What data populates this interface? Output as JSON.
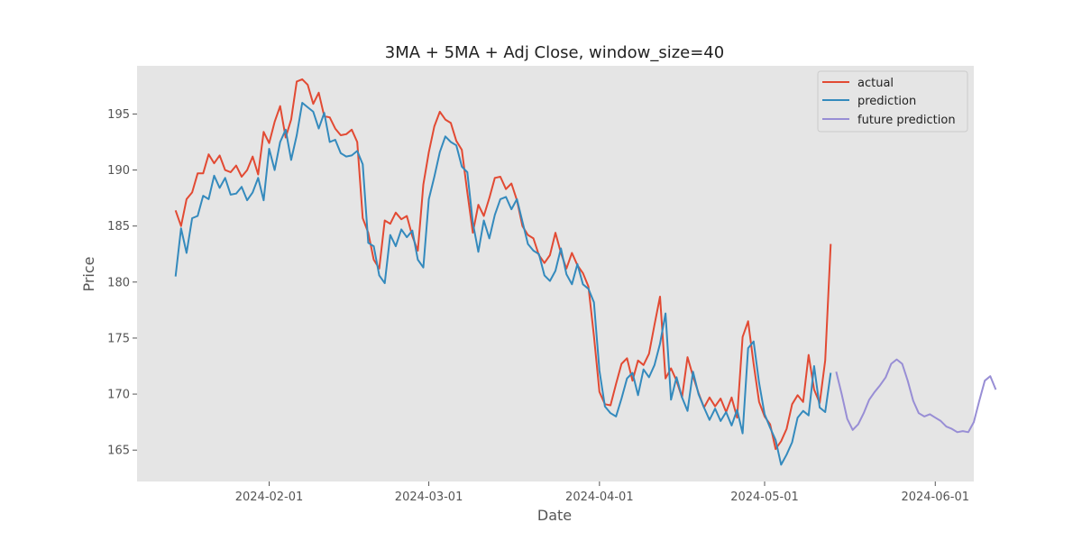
{
  "chart_data": {
    "type": "line",
    "title": "3MA + 5MA + Adj Close, window_size=40",
    "xlabel": "Date",
    "ylabel": "Price",
    "x_range": [
      "2024-01-08",
      "2024-06-08"
    ],
    "ylim": [
      162.2,
      199.3
    ],
    "y_ticks": [
      165,
      170,
      175,
      180,
      185,
      190,
      195
    ],
    "x_ticks": [
      {
        "date": "2024-02-01",
        "label": "2024-02-01"
      },
      {
        "date": "2024-03-01",
        "label": "2024-03-01"
      },
      {
        "date": "2024-04-01",
        "label": "2024-04-01"
      },
      {
        "date": "2024-05-01",
        "label": "2024-05-01"
      },
      {
        "date": "2024-06-01",
        "label": "2024-06-01"
      }
    ],
    "grid": false,
    "legend_position": "top-right",
    "series": [
      {
        "name": "actual",
        "color": "#E24A33",
        "points": [
          [
            "2024-01-15",
            186.4
          ],
          [
            "2024-01-16",
            185.0
          ],
          [
            "2024-01-17",
            187.4
          ],
          [
            "2024-01-18",
            188.0
          ],
          [
            "2024-01-19",
            189.7
          ],
          [
            "2024-01-20",
            189.7
          ],
          [
            "2024-01-21",
            191.4
          ],
          [
            "2024-01-22",
            190.6
          ],
          [
            "2024-01-23",
            191.3
          ],
          [
            "2024-01-24",
            190.0
          ],
          [
            "2024-01-25",
            189.8
          ],
          [
            "2024-01-26",
            190.4
          ],
          [
            "2024-01-27",
            189.4
          ],
          [
            "2024-01-28",
            190.0
          ],
          [
            "2024-01-29",
            191.2
          ],
          [
            "2024-01-30",
            189.6
          ],
          [
            "2024-01-31",
            193.4
          ],
          [
            "2024-02-01",
            192.4
          ],
          [
            "2024-02-02",
            194.3
          ],
          [
            "2024-02-03",
            195.7
          ],
          [
            "2024-02-04",
            192.9
          ],
          [
            "2024-02-05",
            194.5
          ],
          [
            "2024-02-06",
            197.9
          ],
          [
            "2024-02-07",
            198.1
          ],
          [
            "2024-02-08",
            197.6
          ],
          [
            "2024-02-09",
            195.9
          ],
          [
            "2024-02-10",
            196.9
          ],
          [
            "2024-02-11",
            194.8
          ],
          [
            "2024-02-12",
            194.7
          ],
          [
            "2024-02-13",
            193.7
          ],
          [
            "2024-02-14",
            193.1
          ],
          [
            "2024-02-15",
            193.2
          ],
          [
            "2024-02-16",
            193.6
          ],
          [
            "2024-02-17",
            192.5
          ],
          [
            "2024-02-18",
            185.7
          ],
          [
            "2024-02-19",
            184.4
          ],
          [
            "2024-02-20",
            182.0
          ],
          [
            "2024-02-21",
            181.2
          ],
          [
            "2024-02-22",
            185.5
          ],
          [
            "2024-02-23",
            185.2
          ],
          [
            "2024-02-24",
            186.2
          ],
          [
            "2024-02-25",
            185.6
          ],
          [
            "2024-02-26",
            185.9
          ],
          [
            "2024-02-27",
            184.1
          ],
          [
            "2024-02-28",
            182.8
          ],
          [
            "2024-02-29",
            188.7
          ],
          [
            "2024-03-01",
            191.6
          ],
          [
            "2024-03-02",
            193.9
          ],
          [
            "2024-03-03",
            195.2
          ],
          [
            "2024-03-04",
            194.5
          ],
          [
            "2024-03-05",
            194.2
          ],
          [
            "2024-03-06",
            192.6
          ],
          [
            "2024-03-07",
            191.8
          ],
          [
            "2024-03-08",
            188.0
          ],
          [
            "2024-03-09",
            184.4
          ],
          [
            "2024-03-10",
            186.9
          ],
          [
            "2024-03-11",
            185.9
          ],
          [
            "2024-03-12",
            187.5
          ],
          [
            "2024-03-13",
            189.3
          ],
          [
            "2024-03-14",
            189.4
          ],
          [
            "2024-03-15",
            188.3
          ],
          [
            "2024-03-16",
            188.8
          ],
          [
            "2024-03-17",
            187.3
          ],
          [
            "2024-03-18",
            185.0
          ],
          [
            "2024-03-19",
            184.2
          ],
          [
            "2024-03-20",
            183.9
          ],
          [
            "2024-03-21",
            182.4
          ],
          [
            "2024-03-22",
            181.7
          ],
          [
            "2024-03-23",
            182.4
          ],
          [
            "2024-03-24",
            184.4
          ],
          [
            "2024-03-25",
            182.6
          ],
          [
            "2024-03-26",
            181.2
          ],
          [
            "2024-03-27",
            182.6
          ],
          [
            "2024-03-28",
            181.5
          ],
          [
            "2024-03-29",
            180.8
          ],
          [
            "2024-03-30",
            179.6
          ],
          [
            "2024-03-31",
            175.2
          ],
          [
            "2024-04-01",
            170.2
          ],
          [
            "2024-04-02",
            169.1
          ],
          [
            "2024-04-03",
            169.0
          ],
          [
            "2024-04-04",
            170.9
          ],
          [
            "2024-04-05",
            172.7
          ],
          [
            "2024-04-06",
            173.2
          ],
          [
            "2024-04-07",
            171.2
          ],
          [
            "2024-04-08",
            173.0
          ],
          [
            "2024-04-09",
            172.6
          ],
          [
            "2024-04-10",
            173.6
          ],
          [
            "2024-04-11",
            176.2
          ],
          [
            "2024-04-12",
            178.7
          ],
          [
            "2024-04-13",
            171.4
          ],
          [
            "2024-04-14",
            172.3
          ],
          [
            "2024-04-15",
            171.2
          ],
          [
            "2024-04-16",
            169.7
          ],
          [
            "2024-04-17",
            173.3
          ],
          [
            "2024-04-18",
            171.6
          ],
          [
            "2024-04-19",
            170.1
          ],
          [
            "2024-04-20",
            168.8
          ],
          [
            "2024-04-21",
            169.7
          ],
          [
            "2024-04-22",
            168.9
          ],
          [
            "2024-04-23",
            169.6
          ],
          [
            "2024-04-24",
            168.4
          ],
          [
            "2024-04-25",
            169.7
          ],
          [
            "2024-04-26",
            167.9
          ],
          [
            "2024-04-27",
            175.1
          ],
          [
            "2024-04-28",
            176.5
          ],
          [
            "2024-04-29",
            172.7
          ],
          [
            "2024-04-30",
            169.3
          ],
          [
            "2024-05-01",
            168.0
          ],
          [
            "2024-05-02",
            167.3
          ],
          [
            "2024-05-03",
            165.1
          ],
          [
            "2024-05-04",
            165.8
          ],
          [
            "2024-05-05",
            166.9
          ],
          [
            "2024-05-06",
            169.1
          ],
          [
            "2024-05-07",
            169.9
          ],
          [
            "2024-05-08",
            169.3
          ],
          [
            "2024-05-09",
            173.5
          ],
          [
            "2024-05-10",
            170.4
          ],
          [
            "2024-05-11",
            169.2
          ],
          [
            "2024-05-12",
            173.0
          ],
          [
            "2024-05-13",
            183.4
          ]
        ]
      },
      {
        "name": "prediction",
        "color": "#348ABD",
        "points": [
          [
            "2024-01-15",
            180.5
          ],
          [
            "2024-01-16",
            184.8
          ],
          [
            "2024-01-17",
            182.6
          ],
          [
            "2024-01-18",
            185.7
          ],
          [
            "2024-01-19",
            185.9
          ],
          [
            "2024-01-20",
            187.7
          ],
          [
            "2024-01-21",
            187.4
          ],
          [
            "2024-01-22",
            189.5
          ],
          [
            "2024-01-23",
            188.4
          ],
          [
            "2024-01-24",
            189.3
          ],
          [
            "2024-01-25",
            187.8
          ],
          [
            "2024-01-26",
            187.9
          ],
          [
            "2024-01-27",
            188.5
          ],
          [
            "2024-01-28",
            187.3
          ],
          [
            "2024-01-29",
            188.0
          ],
          [
            "2024-01-30",
            189.3
          ],
          [
            "2024-01-31",
            187.3
          ],
          [
            "2024-02-01",
            191.9
          ],
          [
            "2024-02-02",
            190.0
          ],
          [
            "2024-02-03",
            192.5
          ],
          [
            "2024-02-04",
            193.6
          ],
          [
            "2024-02-05",
            190.9
          ],
          [
            "2024-02-06",
            193.1
          ],
          [
            "2024-02-07",
            196.0
          ],
          [
            "2024-02-08",
            195.6
          ],
          [
            "2024-02-09",
            195.2
          ],
          [
            "2024-02-10",
            193.7
          ],
          [
            "2024-02-11",
            195.1
          ],
          [
            "2024-02-12",
            192.5
          ],
          [
            "2024-02-13",
            192.7
          ],
          [
            "2024-02-14",
            191.5
          ],
          [
            "2024-02-15",
            191.2
          ],
          [
            "2024-02-16",
            191.3
          ],
          [
            "2024-02-17",
            191.7
          ],
          [
            "2024-02-18",
            190.5
          ],
          [
            "2024-02-19",
            183.5
          ],
          [
            "2024-02-20",
            183.2
          ],
          [
            "2024-02-21",
            180.6
          ],
          [
            "2024-02-22",
            179.9
          ],
          [
            "2024-02-23",
            184.2
          ],
          [
            "2024-02-24",
            183.2
          ],
          [
            "2024-02-25",
            184.7
          ],
          [
            "2024-02-26",
            184.0
          ],
          [
            "2024-02-27",
            184.6
          ],
          [
            "2024-02-28",
            182.0
          ],
          [
            "2024-02-29",
            181.3
          ],
          [
            "2024-03-01",
            187.4
          ],
          [
            "2024-03-02",
            189.4
          ],
          [
            "2024-03-03",
            191.6
          ],
          [
            "2024-03-04",
            193.0
          ],
          [
            "2024-03-05",
            192.5
          ],
          [
            "2024-03-06",
            192.2
          ],
          [
            "2024-03-07",
            190.3
          ],
          [
            "2024-03-08",
            189.8
          ],
          [
            "2024-03-09",
            185.3
          ],
          [
            "2024-03-10",
            182.7
          ],
          [
            "2024-03-11",
            185.5
          ],
          [
            "2024-03-12",
            183.9
          ],
          [
            "2024-03-13",
            186.0
          ],
          [
            "2024-03-14",
            187.4
          ],
          [
            "2024-03-15",
            187.6
          ],
          [
            "2024-03-16",
            186.5
          ],
          [
            "2024-03-17",
            187.4
          ],
          [
            "2024-03-18",
            185.4
          ],
          [
            "2024-03-19",
            183.4
          ],
          [
            "2024-03-20",
            182.8
          ],
          [
            "2024-03-21",
            182.5
          ],
          [
            "2024-03-22",
            180.6
          ],
          [
            "2024-03-23",
            180.1
          ],
          [
            "2024-03-24",
            181.0
          ],
          [
            "2024-03-25",
            183.0
          ],
          [
            "2024-03-26",
            180.7
          ],
          [
            "2024-03-27",
            179.8
          ],
          [
            "2024-03-28",
            181.6
          ],
          [
            "2024-03-29",
            179.8
          ],
          [
            "2024-03-30",
            179.4
          ],
          [
            "2024-03-31",
            178.2
          ],
          [
            "2024-04-01",
            172.1
          ],
          [
            "2024-04-02",
            168.9
          ],
          [
            "2024-04-03",
            168.3
          ],
          [
            "2024-04-04",
            168.0
          ],
          [
            "2024-04-05",
            169.6
          ],
          [
            "2024-04-06",
            171.4
          ],
          [
            "2024-04-07",
            171.9
          ],
          [
            "2024-04-08",
            169.9
          ],
          [
            "2024-04-09",
            172.2
          ],
          [
            "2024-04-10",
            171.5
          ],
          [
            "2024-04-11",
            172.6
          ],
          [
            "2024-04-12",
            174.5
          ],
          [
            "2024-04-13",
            177.2
          ],
          [
            "2024-04-14",
            169.5
          ],
          [
            "2024-04-15",
            171.5
          ],
          [
            "2024-04-16",
            169.7
          ],
          [
            "2024-04-17",
            168.5
          ],
          [
            "2024-04-18",
            172.0
          ],
          [
            "2024-04-19",
            170.0
          ],
          [
            "2024-04-20",
            168.8
          ],
          [
            "2024-04-21",
            167.7
          ],
          [
            "2024-04-22",
            168.7
          ],
          [
            "2024-04-23",
            167.6
          ],
          [
            "2024-04-24",
            168.4
          ],
          [
            "2024-04-25",
            167.2
          ],
          [
            "2024-04-26",
            168.6
          ],
          [
            "2024-04-27",
            166.5
          ],
          [
            "2024-04-28",
            174.1
          ],
          [
            "2024-04-29",
            174.7
          ],
          [
            "2024-04-30",
            171.0
          ],
          [
            "2024-05-01",
            168.2
          ],
          [
            "2024-05-02",
            167.0
          ],
          [
            "2024-05-03",
            165.9
          ],
          [
            "2024-05-04",
            163.7
          ],
          [
            "2024-05-05",
            164.6
          ],
          [
            "2024-05-06",
            165.7
          ],
          [
            "2024-05-07",
            167.9
          ],
          [
            "2024-05-08",
            168.5
          ],
          [
            "2024-05-09",
            168.1
          ],
          [
            "2024-05-10",
            172.5
          ],
          [
            "2024-05-11",
            168.8
          ],
          [
            "2024-05-12",
            168.4
          ],
          [
            "2024-05-13",
            171.9
          ]
        ]
      },
      {
        "name": "future prediction",
        "color": "#988ED5",
        "points": [
          [
            "2024-05-14",
            172.0
          ],
          [
            "2024-05-15",
            170.0
          ],
          [
            "2024-05-16",
            167.8
          ],
          [
            "2024-05-17",
            166.8
          ],
          [
            "2024-05-18",
            167.3
          ],
          [
            "2024-05-19",
            168.3
          ],
          [
            "2024-05-20",
            169.5
          ],
          [
            "2024-05-21",
            170.2
          ],
          [
            "2024-05-22",
            170.8
          ],
          [
            "2024-05-23",
            171.5
          ],
          [
            "2024-05-24",
            172.7
          ],
          [
            "2024-05-25",
            173.1
          ],
          [
            "2024-05-26",
            172.7
          ],
          [
            "2024-05-27",
            171.2
          ],
          [
            "2024-05-28",
            169.4
          ],
          [
            "2024-05-29",
            168.3
          ],
          [
            "2024-05-30",
            168.0
          ],
          [
            "2024-05-31",
            168.2
          ],
          [
            "2024-06-01",
            167.9
          ],
          [
            "2024-06-02",
            167.6
          ],
          [
            "2024-06-03",
            167.1
          ],
          [
            "2024-06-04",
            166.9
          ],
          [
            "2024-06-05",
            166.6
          ],
          [
            "2024-06-06",
            166.7
          ],
          [
            "2024-06-07",
            166.6
          ],
          [
            "2024-06-08",
            167.5
          ],
          [
            "2024-06-09",
            169.4
          ],
          [
            "2024-06-10",
            171.2
          ],
          [
            "2024-06-11",
            171.6
          ],
          [
            "2024-06-12",
            170.4
          ]
        ]
      }
    ]
  }
}
